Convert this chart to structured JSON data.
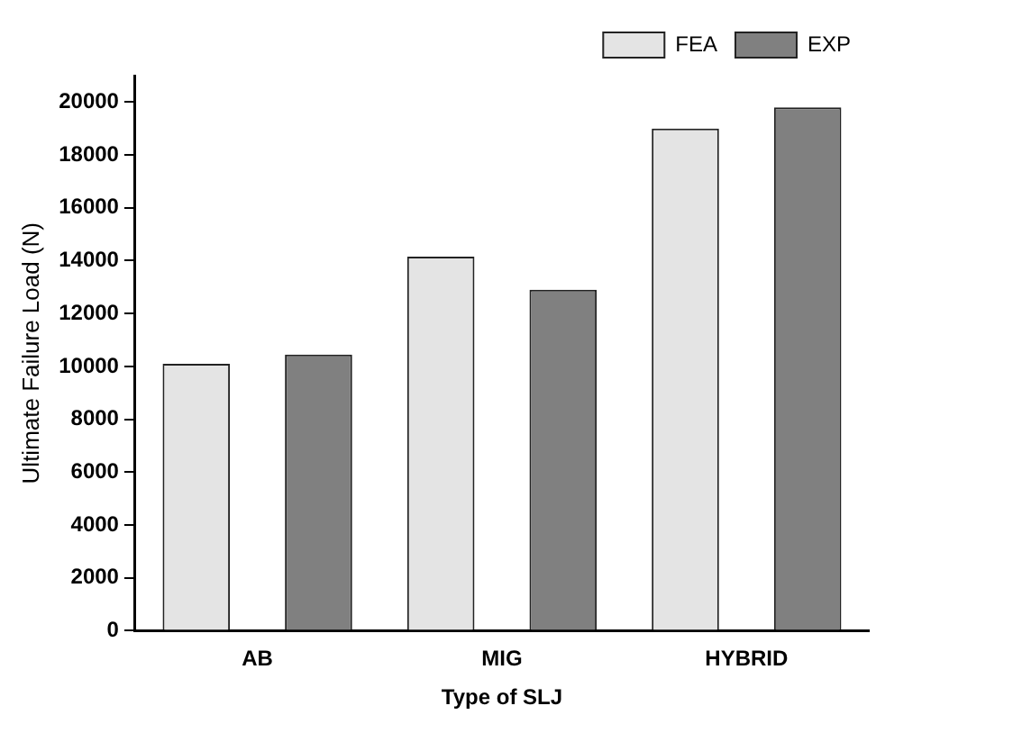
{
  "chart_data": {
    "type": "bar",
    "xlabel": "Type of SLJ",
    "ylabel": "Ultimate Failure Load (N)",
    "categories": [
      "AB",
      "MIG",
      "HYBRID"
    ],
    "series": [
      {
        "name": "FEA",
        "color": "#e4e4e4",
        "values": [
          10100,
          14150,
          19000
        ]
      },
      {
        "name": "EXP",
        "color": "#808080",
        "values": [
          10450,
          12900,
          19800
        ]
      }
    ],
    "ylim": [
      0,
      21000
    ],
    "yticks": [
      0,
      2000,
      4000,
      6000,
      8000,
      10000,
      12000,
      14000,
      16000,
      18000,
      20000
    ],
    "grid": false,
    "legend": "top right"
  }
}
